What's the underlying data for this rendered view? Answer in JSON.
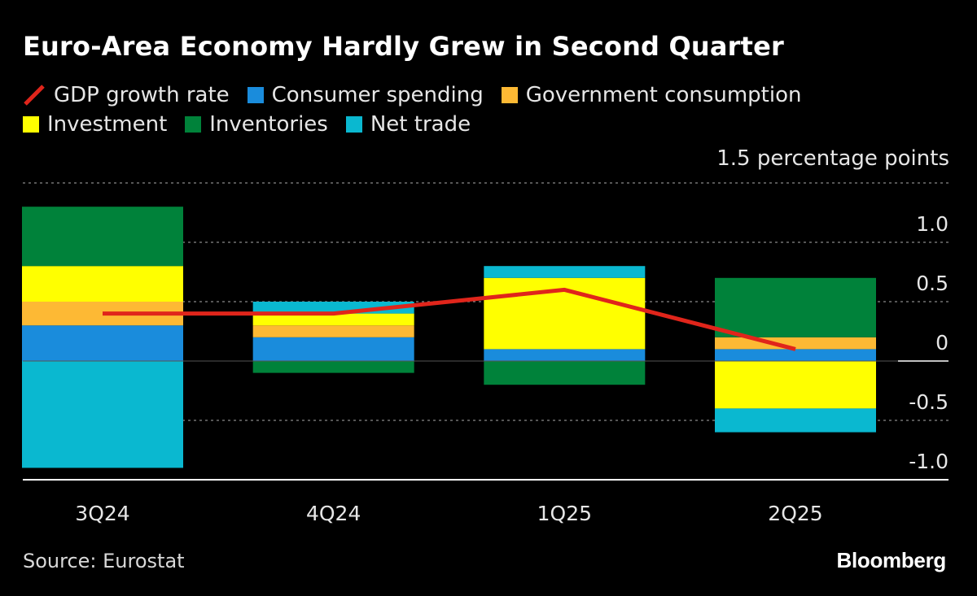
{
  "header": {
    "title": "Euro-Area Economy Hardly Grew in Second Quarter"
  },
  "legend": [
    {
      "label": "GDP growth rate",
      "color": "#e0251b",
      "kind": "line"
    },
    {
      "label": "Consumer spending",
      "color": "#1a8cdc",
      "kind": "bar"
    },
    {
      "label": "Government consumption",
      "color": "#fdb934",
      "kind": "bar"
    },
    {
      "label": "Investment",
      "color": "#ffff00",
      "kind": "bar"
    },
    {
      "label": "Inventories",
      "color": "#00823a",
      "kind": "bar"
    },
    {
      "label": "Net trade",
      "color": "#0ab8d0",
      "kind": "bar"
    }
  ],
  "axis": {
    "unit_label": "1.5 percentage points"
  },
  "footer": {
    "source": "Source: Eurostat",
    "brand": "Bloomberg"
  },
  "chart_data": {
    "type": "bar",
    "stacked": true,
    "title": "Euro-Area Economy Hardly Grew in Second Quarter",
    "categories": [
      "3Q24",
      "4Q24",
      "1Q25",
      "2Q25"
    ],
    "series": [
      {
        "name": "Consumer spending",
        "color": "#1a8cdc",
        "values": [
          0.3,
          0.2,
          0.1,
          0.1
        ]
      },
      {
        "name": "Government consumption",
        "color": "#fdb934",
        "values": [
          0.2,
          0.1,
          0.0,
          0.1
        ]
      },
      {
        "name": "Investment",
        "color": "#ffff00",
        "values": [
          0.3,
          0.1,
          0.6,
          -0.4
        ]
      },
      {
        "name": "Inventories",
        "color": "#00823a",
        "values": [
          0.5,
          -0.1,
          -0.2,
          0.5
        ]
      },
      {
        "name": "Net trade",
        "color": "#0ab8d0",
        "values": [
          -0.9,
          0.1,
          0.1,
          -0.2
        ]
      }
    ],
    "line": {
      "name": "GDP growth rate",
      "color": "#e0251b",
      "values": [
        0.4,
        0.4,
        0.6,
        0.1
      ]
    },
    "ylim": [
      -1.0,
      1.5
    ],
    "yticks": [
      {
        "value": 1.5,
        "label": ""
      },
      {
        "value": 1.0,
        "label": "1.0"
      },
      {
        "value": 0.5,
        "label": "0.5"
      },
      {
        "value": 0,
        "label": "0"
      },
      {
        "value": -0.5,
        "label": "-0.5"
      },
      {
        "value": -1.0,
        "label": "-1.0"
      }
    ],
    "ylabel": "1.5 percentage points",
    "xlabel": ""
  }
}
